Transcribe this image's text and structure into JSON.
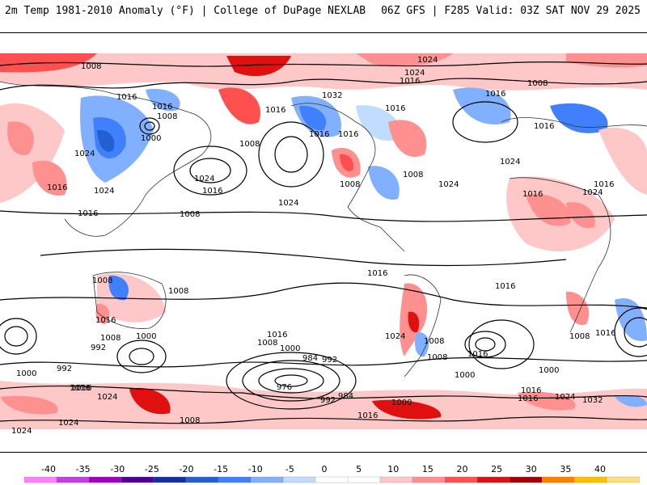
{
  "header": {
    "title": "2m Temp 1981-2010 Anomaly (°F) | College of DuPage NEXLAB",
    "run_info": "06Z GFS | F285 Valid: 03Z SAT NOV 29 2025"
  },
  "map": {
    "pressure_labels": [
      "1008",
      "1024",
      "1024",
      "1016",
      "1032",
      "1016",
      "1016",
      "1016",
      "1008",
      "1000",
      "1008",
      "1016",
      "1008",
      "1024",
      "1016",
      "1016",
      "1008",
      "1024",
      "1024",
      "1016",
      "1016",
      "1024",
      "1016",
      "1024",
      "1016",
      "1016",
      "1024",
      "1016",
      "1016",
      "1008",
      "1008",
      "1016",
      "1008",
      "1016",
      "1016",
      "1024",
      "1008",
      "1000",
      "992",
      "992",
      "1008",
      "1016",
      "1000",
      "984",
      "992",
      "976",
      "1008",
      "1016",
      "992",
      "984",
      "1000",
      "1016",
      "1000",
      "1016",
      "1024",
      "1000",
      "1024",
      "1008",
      "1016",
      "1024",
      "1032",
      "1008",
      "1016",
      "1016",
      "1024",
      "1008",
      "1000",
      "1008",
      "1016",
      "1024"
    ]
  },
  "colorbar": {
    "ticks": [
      "-40",
      "-35",
      "-30",
      "-25",
      "-20",
      "-15",
      "-10",
      "-5",
      "0",
      "5",
      "10",
      "15",
      "20",
      "25",
      "30",
      "35",
      "40"
    ],
    "colors": [
      "#ff80ff",
      "#c040e0",
      "#a000c0",
      "#500090",
      "#1030a0",
      "#2060d0",
      "#4080ff",
      "#80b0ff",
      "#c0dcff",
      "#ffffff",
      "#ffffff",
      "#ffc8c8",
      "#ff9090",
      "#ff5050",
      "#e01010",
      "#a00000",
      "#ff8000",
      "#ffc000",
      "#ffe080"
    ]
  }
}
